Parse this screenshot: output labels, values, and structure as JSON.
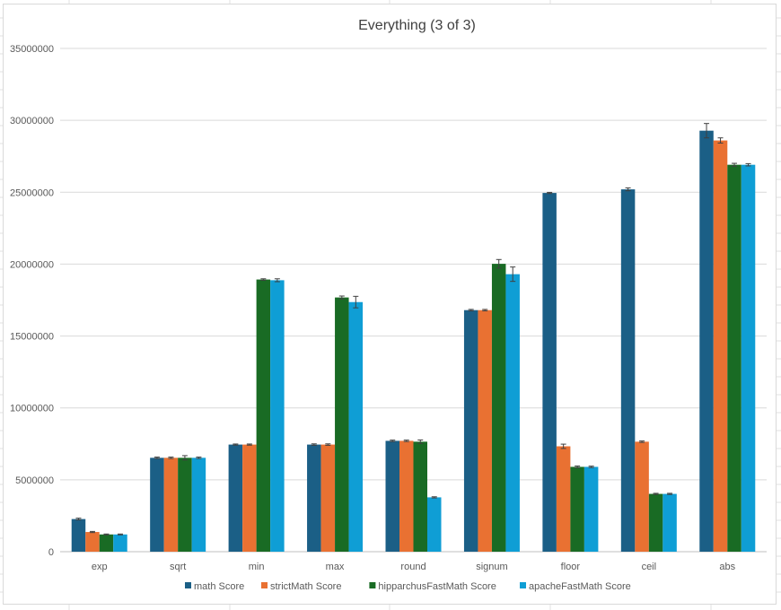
{
  "chart_data": {
    "type": "bar",
    "title": "Everything (3 of 3)",
    "xlabel": "",
    "ylabel": "",
    "ylim": [
      0,
      35000000
    ],
    "yticks": [
      "0",
      "5000000",
      "10000000",
      "15000000",
      "20000000",
      "25000000",
      "30000000",
      "35000000"
    ],
    "ytick_values": [
      0,
      5000000,
      10000000,
      15000000,
      20000000,
      25000000,
      30000000,
      35000000
    ],
    "grid": true,
    "legend_position": "bottom",
    "categories": [
      "exp",
      "sqrt",
      "min",
      "max",
      "round",
      "signum",
      "floor",
      "ceil",
      "abs"
    ],
    "series": [
      {
        "name": "math Score",
        "color": "#1b5f86",
        "values": [
          2270000,
          6530000,
          7450000,
          7450000,
          7710000,
          16800000,
          24950000,
          25200000,
          29280000
        ],
        "errors": [
          60000,
          50000,
          40000,
          50000,
          50000,
          50000,
          40000,
          100000,
          500000
        ]
      },
      {
        "name": "strictMath Score",
        "color": "#e97132",
        "values": [
          1370000,
          6530000,
          7450000,
          7450000,
          7710000,
          16800000,
          7330000,
          7650000,
          28600000
        ],
        "errors": [
          40000,
          50000,
          40000,
          50000,
          50000,
          50000,
          150000,
          50000,
          180000
        ]
      },
      {
        "name": "hipparchusFastMath Score",
        "color": "#196b24",
        "values": [
          1200000,
          6530000,
          18930000,
          17680000,
          7650000,
          20020000,
          5900000,
          4020000,
          26910000
        ],
        "errors": [
          30000,
          150000,
          50000,
          100000,
          120000,
          300000,
          60000,
          40000,
          100000
        ]
      },
      {
        "name": "apacheFastMath Score",
        "color": "#0f9ed5",
        "values": [
          1200000,
          6530000,
          18880000,
          17360000,
          3780000,
          19300000,
          5900000,
          4020000,
          26910000
        ],
        "errors": [
          30000,
          50000,
          100000,
          400000,
          40000,
          500000,
          50000,
          40000,
          80000
        ]
      }
    ]
  }
}
